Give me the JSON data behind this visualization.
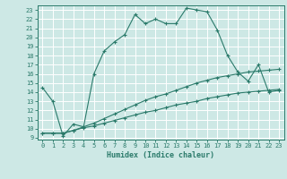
{
  "xlabel": "Humidex (Indice chaleur)",
  "bg_color": "#cde8e5",
  "grid_color": "#b0d8d4",
  "line_color": "#2a7a6a",
  "xlim": [
    -0.5,
    23.5
  ],
  "ylim": [
    8.8,
    23.5
  ],
  "xticks": [
    0,
    1,
    2,
    3,
    4,
    5,
    6,
    7,
    8,
    9,
    10,
    11,
    12,
    13,
    14,
    15,
    16,
    17,
    18,
    19,
    20,
    21,
    22,
    23
  ],
  "yticks": [
    9,
    10,
    11,
    12,
    13,
    14,
    15,
    16,
    17,
    18,
    19,
    20,
    21,
    22,
    23
  ],
  "curve1_x": [
    0,
    1,
    2,
    3,
    4,
    5,
    6,
    7,
    8,
    9,
    10,
    11,
    12,
    13,
    14,
    15,
    16,
    17,
    18,
    19,
    20,
    21,
    22,
    23
  ],
  "curve1_y": [
    14.5,
    13.0,
    9.2,
    10.5,
    10.2,
    16.0,
    18.5,
    19.5,
    20.3,
    22.5,
    21.5,
    22.0,
    21.5,
    21.5,
    23.2,
    23.0,
    22.8,
    20.8,
    18.0,
    16.2,
    15.2,
    17.0,
    14.0,
    14.2
  ],
  "curve2_x": [
    0,
    1,
    2,
    3,
    4,
    5,
    6,
    7,
    8,
    9,
    10,
    11,
    12,
    13,
    14,
    15,
    16,
    17,
    18,
    19,
    20,
    21,
    22,
    23
  ],
  "curve2_y": [
    9.5,
    9.5,
    9.5,
    9.8,
    10.1,
    10.3,
    10.6,
    10.9,
    11.2,
    11.5,
    11.8,
    12.0,
    12.3,
    12.6,
    12.8,
    13.0,
    13.3,
    13.5,
    13.7,
    13.9,
    14.0,
    14.1,
    14.2,
    14.3
  ],
  "curve3_x": [
    0,
    1,
    2,
    3,
    4,
    5,
    6,
    7,
    8,
    9,
    10,
    11,
    12,
    13,
    14,
    15,
    16,
    17,
    18,
    19,
    20,
    21,
    22,
    23
  ],
  "curve3_y": [
    9.5,
    9.5,
    9.5,
    9.8,
    10.2,
    10.6,
    11.1,
    11.6,
    12.1,
    12.6,
    13.1,
    13.5,
    13.8,
    14.2,
    14.6,
    15.0,
    15.3,
    15.6,
    15.8,
    16.0,
    16.2,
    16.3,
    16.4,
    16.5
  ],
  "tick_fontsize": 5,
  "xlabel_fontsize": 6
}
